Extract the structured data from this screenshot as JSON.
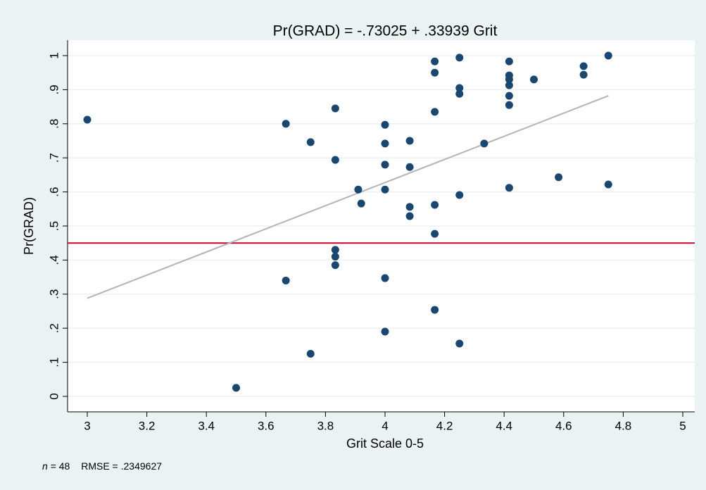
{
  "chart_data": {
    "type": "scatter",
    "title": "Pr(GRAD) = -.73025 + .33939 Grit",
    "x_label": "Grit Scale 0-5",
    "y_label": "Pr(GRAD)",
    "note": {
      "n_symbol": "n",
      "n_value": "= 48",
      "rmse": "RMSE = .2349627"
    },
    "xlim": [
      3,
      5
    ],
    "ylim": [
      0,
      1
    ],
    "xticks": [
      3,
      3.2,
      3.4,
      3.6,
      3.8,
      4,
      4.2,
      4.4,
      4.6,
      4.8,
      5
    ],
    "yticks": [
      0,
      {
        "value": 0.1,
        "label": ".1"
      },
      {
        "value": 0.2,
        "label": ".2"
      },
      {
        "value": 0.3,
        "label": ".3"
      },
      {
        "value": 0.4,
        "label": ".4"
      },
      {
        "value": 0.5,
        "label": ".5"
      },
      {
        "value": 0.6,
        "label": ".6"
      },
      {
        "value": 0.7,
        "label": ".7"
      },
      {
        "value": 0.8,
        "label": ".8"
      },
      {
        "value": 0.9,
        "label": ".9"
      },
      1
    ],
    "grid": true,
    "color": "#1a476f",
    "x": [
      3,
      3.5,
      3.667,
      3.667,
      3.75,
      3.75,
      3.833,
      3.833,
      3.833,
      3.833,
      3.833,
      3.91,
      3.92,
      4,
      4,
      4,
      4,
      4,
      4,
      4.083,
      4.083,
      4.083,
      4.083,
      4.167,
      4.167,
      4.167,
      4.167,
      4.167,
      4.167,
      4.25,
      4.25,
      4.25,
      4.25,
      4.25,
      4.333,
      4.417,
      4.417,
      4.417,
      4.417,
      4.417,
      4.417,
      4.417,
      4.5,
      4.583,
      4.667,
      4.667,
      4.75,
      4.75
    ],
    "values": [
      0.812,
      0.025,
      0.8,
      0.34,
      0.746,
      0.125,
      0.845,
      0.694,
      0.43,
      0.41,
      0.385,
      0.607,
      0.566,
      0.797,
      0.742,
      0.68,
      0.607,
      0.347,
      0.19,
      0.75,
      0.673,
      0.556,
      0.529,
      0.983,
      0.95,
      0.835,
      0.562,
      0.477,
      0.254,
      0.994,
      0.905,
      0.888,
      0.591,
      0.155,
      0.742,
      0.983,
      0.942,
      0.93,
      0.913,
      0.882,
      0.855,
      0.612,
      0.93,
      0.643,
      0.969,
      0.944,
      1.0,
      0.622
    ],
    "fit_line": {
      "x": [
        3,
        4.75
      ],
      "y": [
        0.288,
        0.882
      ],
      "color": "#b4b4b4"
    },
    "reference_line": {
      "value": 0.45,
      "color": "#c10534"
    }
  }
}
